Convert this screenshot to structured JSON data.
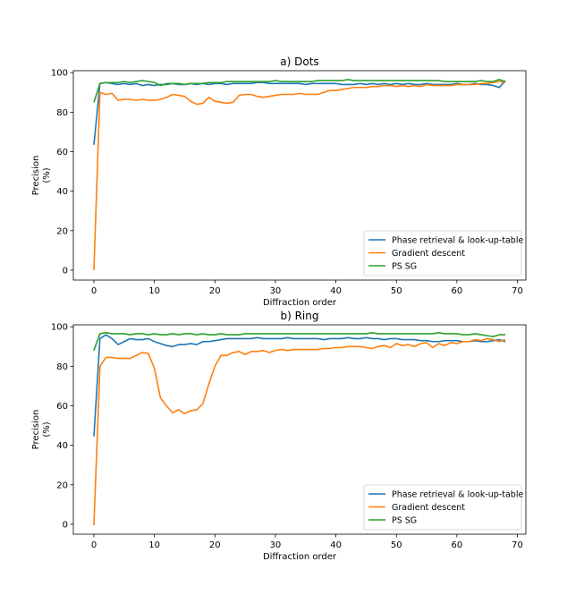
{
  "chart_data": [
    {
      "type": "line",
      "title": "a) Dots",
      "xlabel": "Diffraction order",
      "ylabel_lines": [
        "Precision",
        "(%)"
      ],
      "xlim": [
        -3.4,
        71.4
      ],
      "ylim": [
        -5,
        101
      ],
      "xticks": [
        0,
        10,
        20,
        30,
        40,
        50,
        60,
        70
      ],
      "yticks": [
        0,
        20,
        40,
        60,
        80,
        100
      ],
      "grid": false,
      "legend_position": "lower-right",
      "series": [
        {
          "name": "Phase retrieval & look-up-table",
          "color": "#1f77b4",
          "values": [
            63.5,
            94.5,
            95.0,
            94.5,
            94.0,
            94.5,
            94.0,
            94.5,
            93.5,
            94.0,
            93.5,
            94.0,
            94.0,
            94.5,
            94.0,
            94.0,
            94.5,
            94.0,
            94.5,
            94.0,
            94.5,
            94.5,
            94.0,
            94.5,
            94.5,
            94.5,
            94.5,
            95.0,
            95.0,
            94.5,
            94.5,
            94.5,
            94.5,
            94.5,
            94.5,
            94.0,
            94.5,
            94.5,
            94.5,
            94.5,
            94.5,
            94.0,
            94.0,
            94.0,
            94.5,
            94.0,
            94.5,
            94.0,
            94.5,
            94.0,
            94.5,
            94.0,
            94.5,
            94.0,
            94.0,
            94.5,
            94.0,
            94.0,
            94.0,
            94.0,
            94.5,
            94.0,
            94.0,
            94.5,
            94.0,
            94.0,
            93.5,
            92.5,
            96.0
          ]
        },
        {
          "name": "Gradient descent",
          "color": "#ff7f0e",
          "values": [
            0,
            90.0,
            89.0,
            89.5,
            86.0,
            86.5,
            86.5,
            86.0,
            86.5,
            86.0,
            86.0,
            86.5,
            87.5,
            89.0,
            88.5,
            88.0,
            85.5,
            84.0,
            84.5,
            87.5,
            85.5,
            85.0,
            84.5,
            85.0,
            88.5,
            89.0,
            89.0,
            88.0,
            87.5,
            88.0,
            88.5,
            89.0,
            89.0,
            89.0,
            89.5,
            89.0,
            89.0,
            89.0,
            90.0,
            91.0,
            91.0,
            91.5,
            92.0,
            92.5,
            92.5,
            92.5,
            93.0,
            93.0,
            93.5,
            93.5,
            93.0,
            93.5,
            93.0,
            93.5,
            93.0,
            94.0,
            93.5,
            93.5,
            93.5,
            93.5,
            94.0,
            94.0,
            94.0,
            94.0,
            94.5,
            94.5,
            95.0,
            95.5,
            95.0
          ]
        },
        {
          "name": "PS SG",
          "color": "#2ca02c",
          "values": [
            85.0,
            94.5,
            95.0,
            95.0,
            95.0,
            95.5,
            95.0,
            95.5,
            96.0,
            95.5,
            95.0,
            93.5,
            94.5,
            94.5,
            94.5,
            94.0,
            94.5,
            94.5,
            94.5,
            95.0,
            95.0,
            95.0,
            95.5,
            95.5,
            95.5,
            95.5,
            95.5,
            95.5,
            95.5,
            95.5,
            96.0,
            95.5,
            95.5,
            95.5,
            95.5,
            95.5,
            95.5,
            96.0,
            96.0,
            96.0,
            96.0,
            96.0,
            96.5,
            96.0,
            96.0,
            96.0,
            96.0,
            96.0,
            96.0,
            96.0,
            96.0,
            96.0,
            96.0,
            96.0,
            96.0,
            96.0,
            96.0,
            96.0,
            95.5,
            95.5,
            95.5,
            95.5,
            95.5,
            95.5,
            96.0,
            95.5,
            95.5,
            96.5,
            95.5
          ]
        }
      ]
    },
    {
      "type": "line",
      "title": "b) Ring",
      "xlabel": "Diffraction order",
      "ylabel_lines": [
        "Precision",
        "(%)"
      ],
      "xlim": [
        -3.4,
        71.4
      ],
      "ylim": [
        -5,
        101
      ],
      "xticks": [
        0,
        10,
        20,
        30,
        40,
        50,
        60,
        70
      ],
      "yticks": [
        0,
        20,
        40,
        60,
        80,
        100
      ],
      "grid": false,
      "legend_position": "lower-right",
      "series": [
        {
          "name": "Phase retrieval & look-up-table",
          "color": "#1f77b4",
          "values": [
            44.5,
            94.0,
            96.0,
            94.0,
            91.0,
            92.5,
            94.0,
            93.5,
            93.5,
            94.0,
            92.5,
            91.5,
            90.5,
            90.0,
            91.0,
            91.0,
            91.5,
            91.0,
            92.5,
            92.5,
            93.0,
            93.5,
            94.0,
            94.0,
            94.0,
            94.0,
            94.0,
            94.5,
            94.0,
            94.0,
            94.0,
            94.0,
            94.5,
            94.0,
            94.0,
            94.0,
            94.0,
            94.0,
            93.5,
            94.0,
            94.0,
            94.0,
            94.5,
            94.0,
            94.0,
            94.5,
            94.0,
            94.0,
            93.5,
            94.0,
            94.0,
            93.5,
            93.5,
            93.5,
            93.0,
            93.0,
            92.5,
            92.5,
            93.0,
            93.0,
            93.0,
            92.5,
            92.5,
            93.0,
            92.5,
            92.5,
            93.0,
            93.5,
            92.5
          ]
        },
        {
          "name": "Gradient descent",
          "color": "#ff7f0e",
          "values": [
            -0.5,
            80.0,
            84.5,
            84.5,
            84.0,
            84.0,
            84.0,
            85.5,
            87.0,
            86.5,
            79.0,
            64.0,
            60.0,
            56.5,
            58.0,
            56.0,
            57.5,
            58.0,
            61.0,
            71.0,
            80.0,
            85.5,
            85.5,
            87.0,
            87.5,
            86.0,
            87.5,
            87.5,
            88.0,
            87.0,
            88.0,
            88.5,
            88.0,
            88.5,
            88.5,
            88.5,
            88.5,
            88.5,
            89.0,
            89.0,
            89.5,
            89.5,
            90.0,
            90.0,
            90.0,
            89.5,
            89.0,
            90.0,
            90.5,
            89.5,
            91.5,
            90.5,
            91.0,
            90.0,
            91.5,
            92.0,
            89.5,
            91.5,
            90.5,
            92.0,
            91.5,
            92.5,
            92.5,
            93.5,
            93.0,
            94.0,
            93.5,
            92.5,
            93.5
          ]
        },
        {
          "name": "PS SG",
          "color": "#2ca02c",
          "values": [
            88.0,
            96.5,
            97.0,
            96.5,
            96.5,
            96.5,
            96.0,
            96.5,
            96.5,
            96.0,
            96.5,
            96.0,
            96.0,
            96.5,
            96.0,
            96.5,
            96.5,
            96.0,
            96.5,
            96.0,
            96.0,
            96.5,
            96.0,
            96.0,
            96.0,
            96.5,
            96.5,
            96.5,
            96.5,
            96.5,
            96.5,
            96.5,
            96.5,
            96.5,
            96.5,
            96.5,
            96.5,
            96.5,
            96.5,
            96.5,
            96.5,
            96.5,
            96.5,
            96.5,
            96.5,
            96.5,
            97.0,
            96.5,
            96.5,
            96.5,
            96.5,
            96.5,
            96.5,
            96.5,
            96.5,
            96.5,
            96.5,
            97.0,
            96.5,
            96.5,
            96.5,
            96.0,
            96.0,
            96.5,
            96.0,
            95.5,
            95.0,
            96.0,
            96.0
          ]
        }
      ]
    }
  ]
}
